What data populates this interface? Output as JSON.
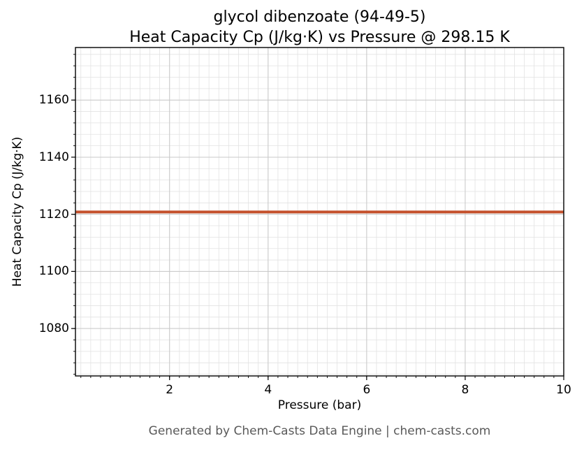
{
  "title": {
    "line1": "glycol dibenzoate (94-49-5)",
    "line2": "Heat Capacity Cp (J/kg·K) vs Pressure @ 298.15 K"
  },
  "footer": {
    "text": "Generated by Chem-Casts Data Engine | chem-casts.com"
  },
  "chart_data": {
    "type": "line",
    "title": "glycol dibenzoate (94-49-5)\nHeat Capacity Cp (J/kg·K) vs Pressure @ 298.15 K",
    "xlabel": "Pressure (bar)",
    "ylabel": "Heat Capacity Cp (J/kg·K)",
    "series": [
      {
        "name": "Heat Capacity Cp",
        "x": [
          0.1,
          10.0
        ],
        "y": [
          1120.8,
          1120.8
        ],
        "color": "#c4512c",
        "line_width": 4
      }
    ],
    "xlim": [
      0.09,
      10.0
    ],
    "ylim": [
      1063.4,
      1178.4
    ],
    "xticks": [
      2,
      4,
      6,
      8,
      10
    ],
    "yticks": [
      1080,
      1100,
      1120,
      1140,
      1160
    ],
    "x_minor_step": 0.2,
    "y_minor_step": 4,
    "grid": true,
    "minor_grid": true,
    "legend": "none",
    "colors": {
      "line": "#c4512c",
      "major_grid": "#c8c8c8",
      "minor_grid": "#e2e2e2",
      "spine": "#000000",
      "footer_text": "#595959"
    }
  }
}
